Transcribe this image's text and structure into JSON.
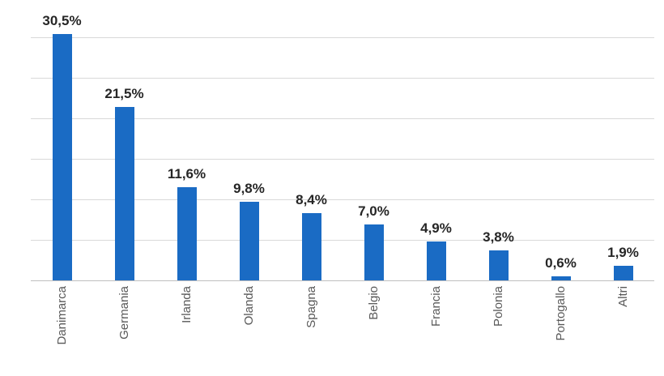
{
  "chart_data": {
    "type": "bar",
    "title": "",
    "xlabel": "",
    "ylabel": "",
    "categories": [
      "Danimarca",
      "Germania",
      "Irlanda",
      "Olanda",
      "Spagna",
      "Belgio",
      "Francia",
      "Polonia",
      "Portogallo",
      "Altri"
    ],
    "values": [
      30.5,
      21.5,
      11.6,
      9.8,
      8.4,
      7.0,
      4.9,
      3.8,
      0.6,
      1.9
    ],
    "value_labels": [
      "30,5%",
      "21,5%",
      "11,6%",
      "9,8%",
      "8,4%",
      "7,0%",
      "4,9%",
      "3,8%",
      "0,6%",
      "1,9%"
    ],
    "ylim": [
      0,
      33.7
    ],
    "gridline_step": 5,
    "grid": true,
    "legend": false,
    "colors": {
      "bar": "#1a6bc4",
      "value_label": "#262626",
      "category_label": "#595959",
      "gridline": "#d9d9d9",
      "baseline": "#bfbfbf",
      "background": "#ffffff"
    }
  }
}
